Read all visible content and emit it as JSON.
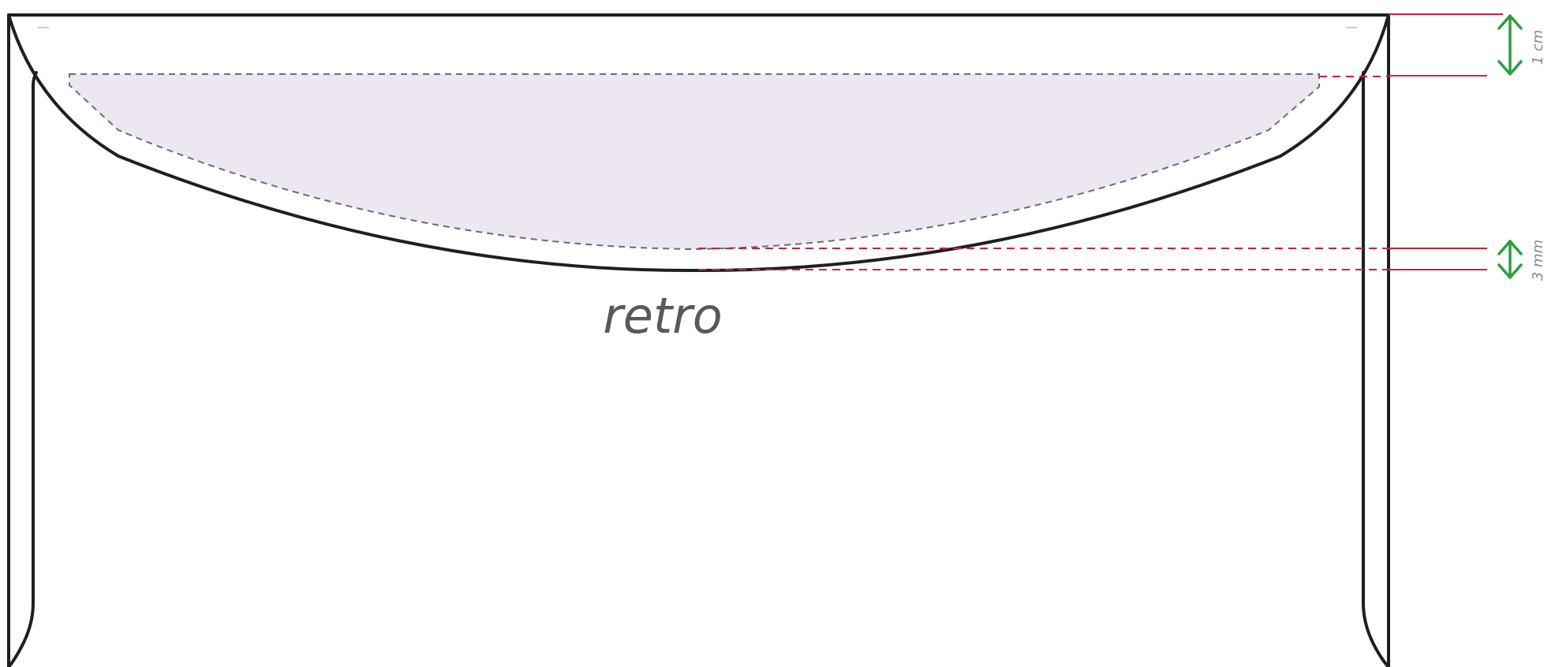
{
  "diagram": {
    "label": "retro",
    "measurements": [
      {
        "id": "flap-depth",
        "text": "1 cm"
      },
      {
        "id": "glue-margin",
        "text": "3 mm"
      }
    ]
  },
  "colors": {
    "outline": "#1f1f1f",
    "glue_area": "#ede7f2",
    "glue_edge": "#6b6b78",
    "guide_lines": "#c0283a",
    "dimension_arrows": "#2e9e3e",
    "label": "#595959"
  }
}
